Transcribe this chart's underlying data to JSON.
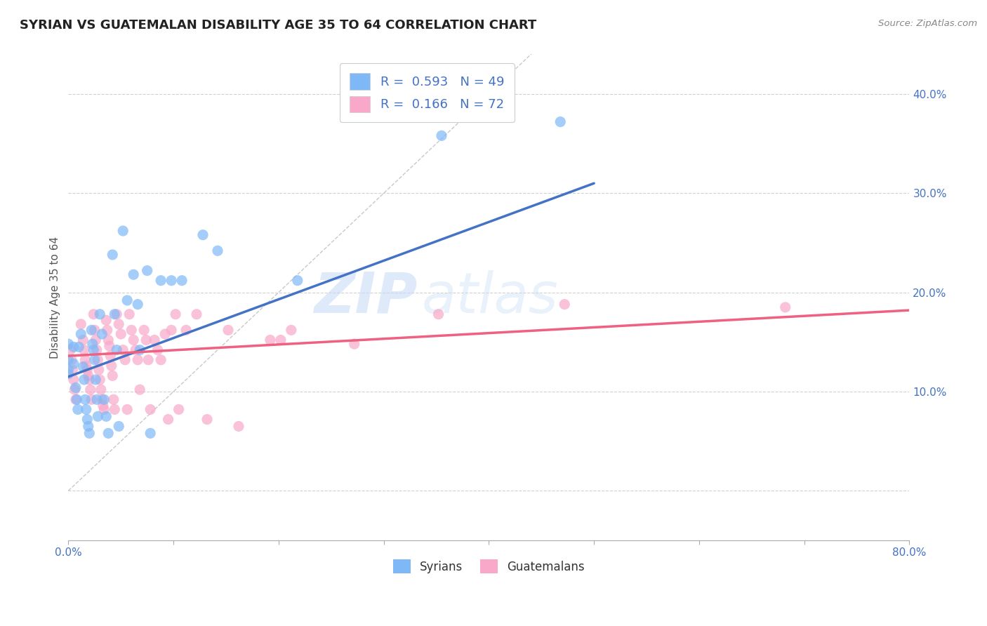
{
  "title": "SYRIAN VS GUATEMALAN DISABILITY AGE 35 TO 64 CORRELATION CHART",
  "source": "Source: ZipAtlas.com",
  "ylabel": "Disability Age 35 to 64",
  "xlim": [
    0.0,
    0.8
  ],
  "ylim": [
    -0.05,
    0.44
  ],
  "xticks": [
    0.0,
    0.1,
    0.2,
    0.3,
    0.4,
    0.5,
    0.6,
    0.7,
    0.8
  ],
  "xticklabels": [
    "0.0%",
    "",
    "",
    "",
    "",
    "",
    "",
    "",
    "80.0%"
  ],
  "yticks": [
    0.0,
    0.1,
    0.2,
    0.3,
    0.4
  ],
  "yticklabels": [
    "",
    "10.0%",
    "20.0%",
    "30.0%",
    "40.0%"
  ],
  "syrian_color": "#7EB8F7",
  "guatemalan_color": "#F9A8C9",
  "syrian_line_color": "#4472C4",
  "guatemalan_line_color": "#F06080",
  "diagonal_color": "#BBBBBB",
  "R_syrian": 0.593,
  "N_syrian": 49,
  "R_guatemalan": 0.166,
  "N_guatemalan": 72,
  "legend_label_syrian": "Syrians",
  "legend_label_guatemalan": "Guatemalans",
  "watermark_zip": "ZIP",
  "watermark_atlas": "atlas",
  "background_color": "#FFFFFF",
  "grid_color": "#CCCCCC",
  "syrian_line_x": [
    0.0,
    0.5
  ],
  "syrian_line_y": [
    0.115,
    0.31
  ],
  "guatemalan_line_x": [
    0.0,
    0.8
  ],
  "guatemalan_line_y": [
    0.136,
    0.182
  ],
  "syrian_points": [
    [
      0.0,
      0.148
    ],
    [
      0.0,
      0.132
    ],
    [
      0.0,
      0.122
    ],
    [
      0.0,
      0.118
    ],
    [
      0.005,
      0.145
    ],
    [
      0.005,
      0.128
    ],
    [
      0.007,
      0.104
    ],
    [
      0.008,
      0.092
    ],
    [
      0.009,
      0.082
    ],
    [
      0.01,
      0.145
    ],
    [
      0.012,
      0.158
    ],
    [
      0.014,
      0.125
    ],
    [
      0.015,
      0.112
    ],
    [
      0.016,
      0.092
    ],
    [
      0.017,
      0.082
    ],
    [
      0.018,
      0.072
    ],
    [
      0.019,
      0.065
    ],
    [
      0.02,
      0.058
    ],
    [
      0.022,
      0.162
    ],
    [
      0.023,
      0.148
    ],
    [
      0.024,
      0.142
    ],
    [
      0.025,
      0.132
    ],
    [
      0.026,
      0.112
    ],
    [
      0.027,
      0.092
    ],
    [
      0.028,
      0.075
    ],
    [
      0.03,
      0.178
    ],
    [
      0.032,
      0.158
    ],
    [
      0.034,
      0.092
    ],
    [
      0.036,
      0.075
    ],
    [
      0.038,
      0.058
    ],
    [
      0.042,
      0.238
    ],
    [
      0.044,
      0.178
    ],
    [
      0.046,
      0.142
    ],
    [
      0.048,
      0.065
    ],
    [
      0.052,
      0.262
    ],
    [
      0.056,
      0.192
    ],
    [
      0.062,
      0.218
    ],
    [
      0.066,
      0.188
    ],
    [
      0.068,
      0.142
    ],
    [
      0.075,
      0.222
    ],
    [
      0.078,
      0.058
    ],
    [
      0.088,
      0.212
    ],
    [
      0.098,
      0.212
    ],
    [
      0.108,
      0.212
    ],
    [
      0.128,
      0.258
    ],
    [
      0.142,
      0.242
    ],
    [
      0.218,
      0.212
    ],
    [
      0.355,
      0.358
    ],
    [
      0.468,
      0.372
    ]
  ],
  "guatemalan_points": [
    [
      0.002,
      0.142
    ],
    [
      0.003,
      0.132
    ],
    [
      0.004,
      0.122
    ],
    [
      0.005,
      0.112
    ],
    [
      0.006,
      0.102
    ],
    [
      0.007,
      0.092
    ],
    [
      0.012,
      0.168
    ],
    [
      0.014,
      0.152
    ],
    [
      0.015,
      0.142
    ],
    [
      0.016,
      0.132
    ],
    [
      0.017,
      0.126
    ],
    [
      0.018,
      0.122
    ],
    [
      0.019,
      0.116
    ],
    [
      0.02,
      0.112
    ],
    [
      0.021,
      0.102
    ],
    [
      0.022,
      0.092
    ],
    [
      0.024,
      0.178
    ],
    [
      0.025,
      0.162
    ],
    [
      0.026,
      0.152
    ],
    [
      0.027,
      0.142
    ],
    [
      0.028,
      0.132
    ],
    [
      0.029,
      0.122
    ],
    [
      0.03,
      0.112
    ],
    [
      0.031,
      0.102
    ],
    [
      0.032,
      0.092
    ],
    [
      0.033,
      0.086
    ],
    [
      0.034,
      0.082
    ],
    [
      0.036,
      0.172
    ],
    [
      0.037,
      0.162
    ],
    [
      0.038,
      0.152
    ],
    [
      0.039,
      0.146
    ],
    [
      0.04,
      0.136
    ],
    [
      0.041,
      0.126
    ],
    [
      0.042,
      0.116
    ],
    [
      0.043,
      0.092
    ],
    [
      0.044,
      0.082
    ],
    [
      0.046,
      0.178
    ],
    [
      0.048,
      0.168
    ],
    [
      0.05,
      0.158
    ],
    [
      0.052,
      0.142
    ],
    [
      0.054,
      0.132
    ],
    [
      0.056,
      0.082
    ],
    [
      0.058,
      0.178
    ],
    [
      0.06,
      0.162
    ],
    [
      0.062,
      0.152
    ],
    [
      0.064,
      0.142
    ],
    [
      0.066,
      0.132
    ],
    [
      0.068,
      0.102
    ],
    [
      0.072,
      0.162
    ],
    [
      0.074,
      0.152
    ],
    [
      0.076,
      0.132
    ],
    [
      0.078,
      0.082
    ],
    [
      0.082,
      0.152
    ],
    [
      0.085,
      0.142
    ],
    [
      0.088,
      0.132
    ],
    [
      0.092,
      0.158
    ],
    [
      0.095,
      0.072
    ],
    [
      0.098,
      0.162
    ],
    [
      0.102,
      0.178
    ],
    [
      0.105,
      0.082
    ],
    [
      0.112,
      0.162
    ],
    [
      0.122,
      0.178
    ],
    [
      0.132,
      0.072
    ],
    [
      0.152,
      0.162
    ],
    [
      0.162,
      0.065
    ],
    [
      0.192,
      0.152
    ],
    [
      0.202,
      0.152
    ],
    [
      0.212,
      0.162
    ],
    [
      0.272,
      0.148
    ],
    [
      0.352,
      0.178
    ],
    [
      0.472,
      0.188
    ],
    [
      0.682,
      0.185
    ]
  ]
}
